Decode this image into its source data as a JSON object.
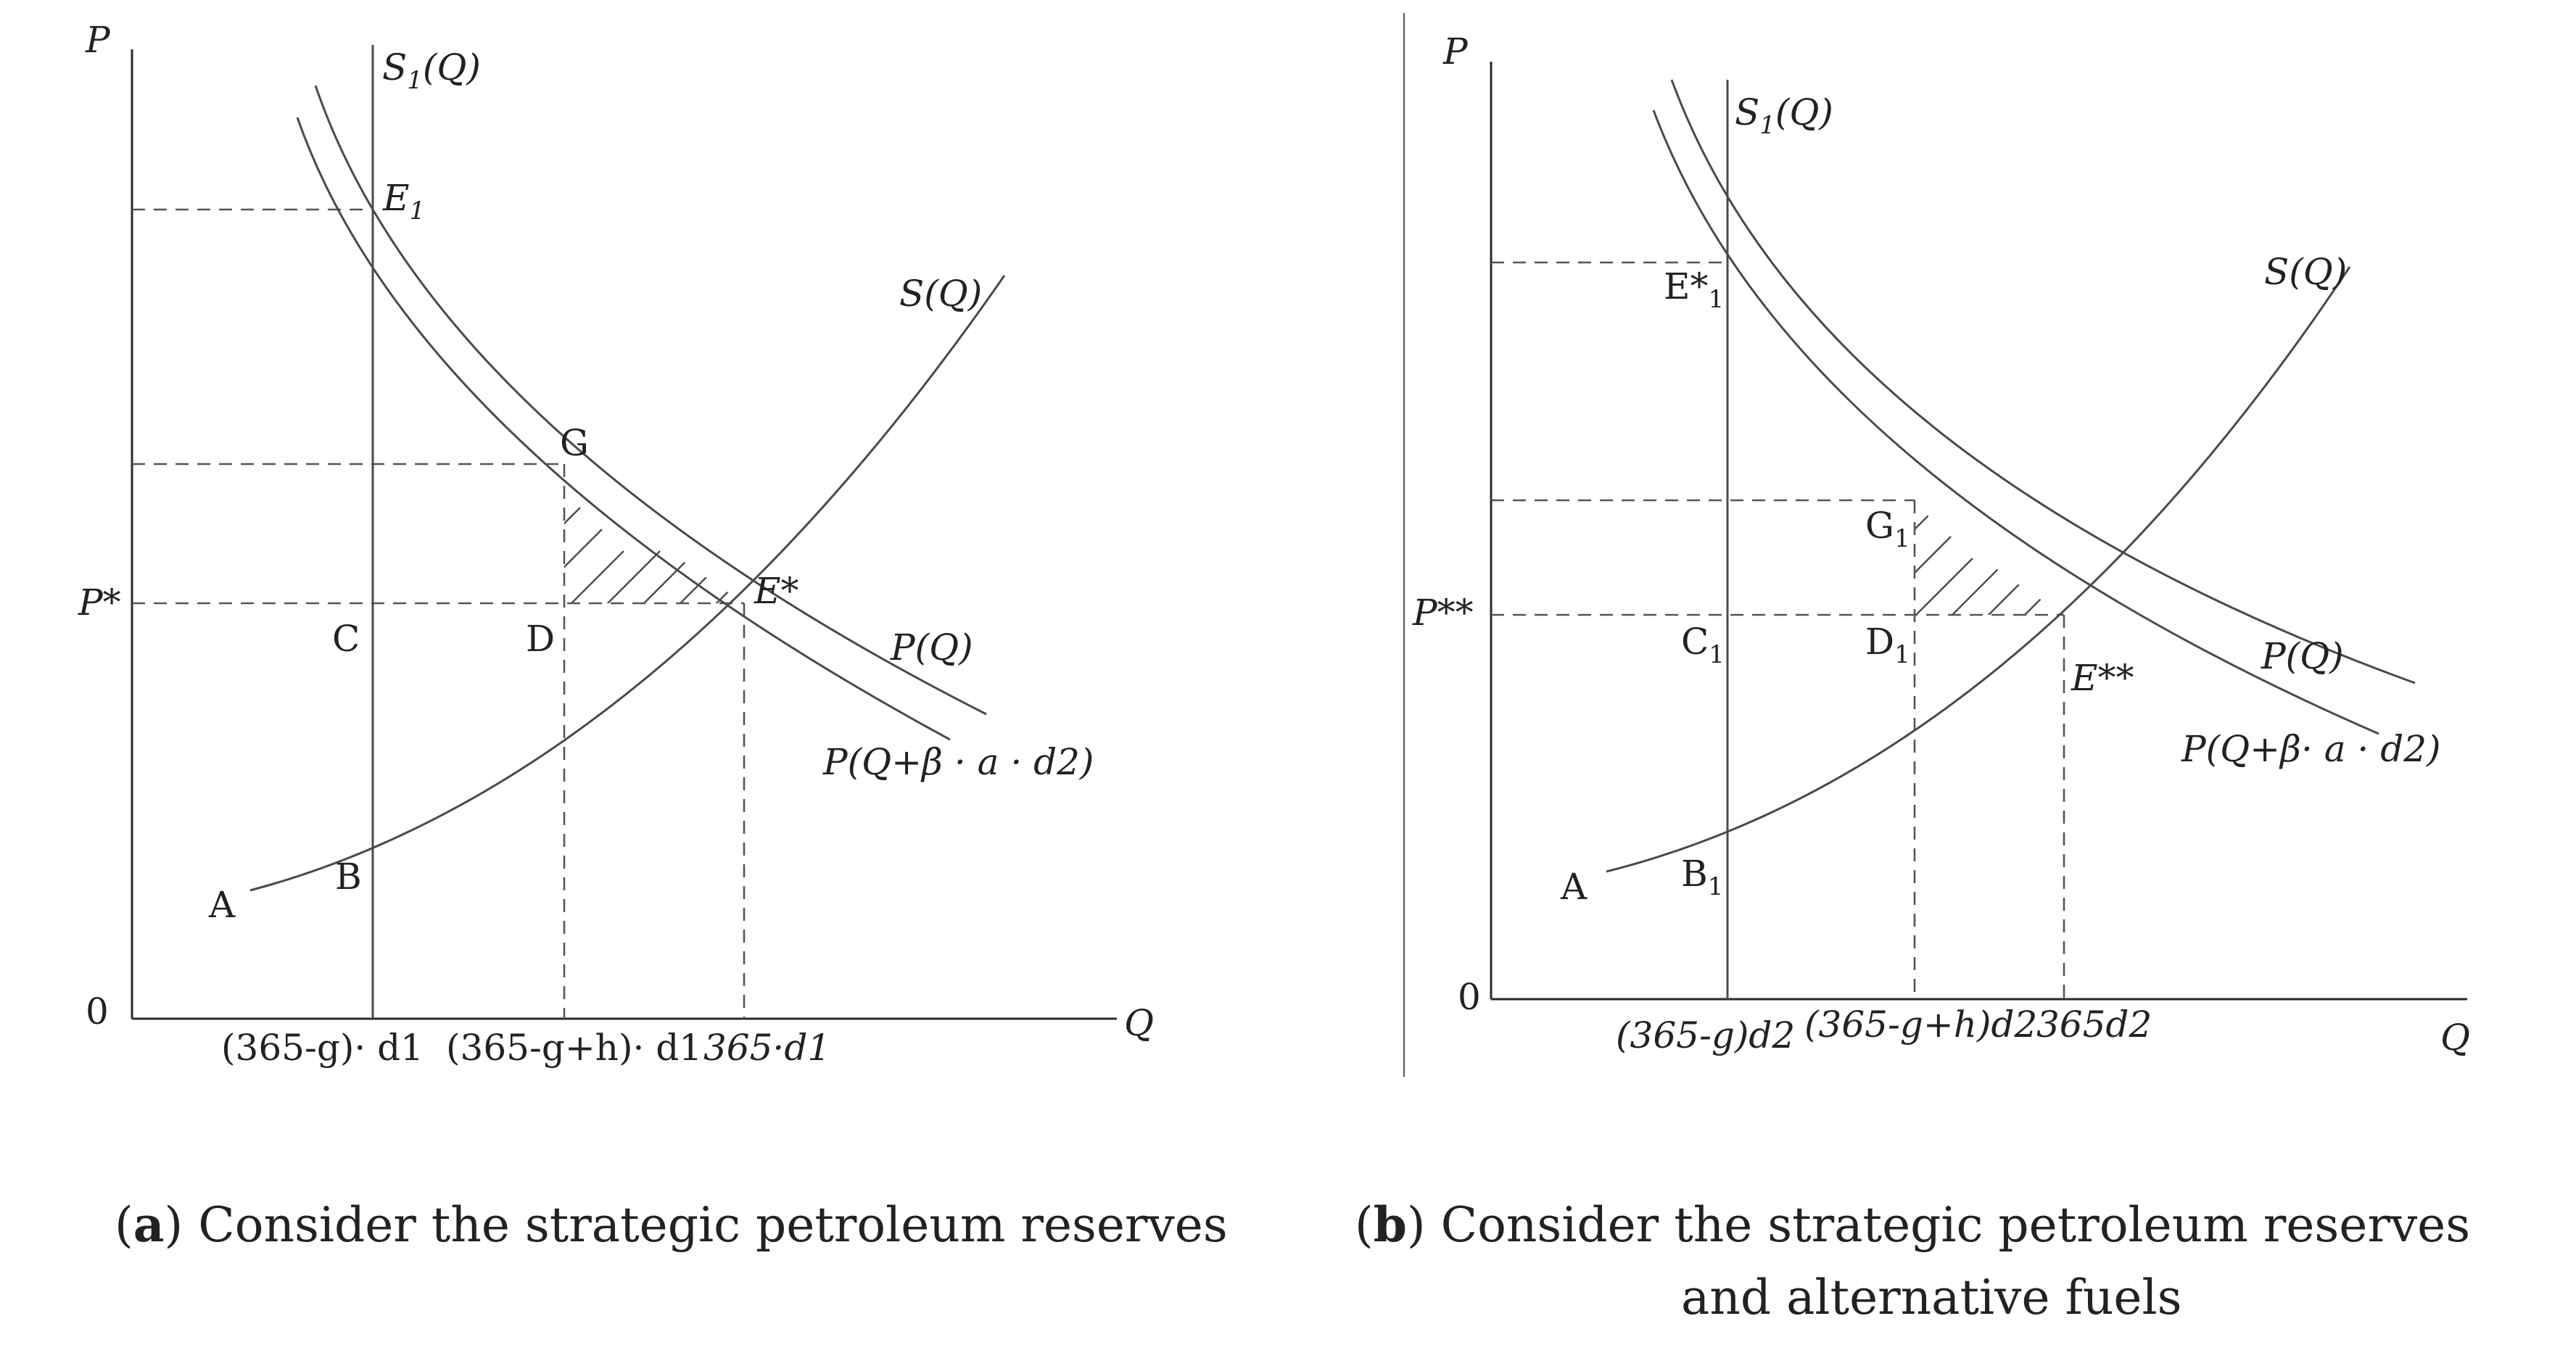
{
  "panel_a": {
    "axis_p": "P",
    "axis_q": "Q",
    "origin": "0",
    "p_star": "P*",
    "s1_s": "S",
    "s1_sub": "1",
    "s1_q": "(Q)",
    "s_curve": "S(Q)",
    "p_curve": "P(Q)",
    "p_shift_curve": "P(Q+β · a · d2)",
    "e1_main": "E",
    "e1_sub": "1",
    "g": "G",
    "e_star": "E*",
    "c": "C",
    "d": "D",
    "b": "B",
    "a": "A",
    "x1": "(365-g)· d1",
    "x2": "(365-g+h)· d1",
    "x3": "365·d1",
    "caption_letter": "a",
    "caption_text": " Consider the strategic petroleum reserves"
  },
  "panel_b": {
    "axis_p": "P",
    "axis_q": "Q",
    "origin": "0",
    "p_star": "P**",
    "s1_s": "S",
    "s1_sub": "1",
    "s1_q": "(Q)",
    "s_curve": "S(Q)",
    "p_curve": "P(Q)",
    "p_shift_curve": "P(Q+β· a · d2)",
    "e1_main": "E*",
    "e1_sub": "1",
    "g_main": "G",
    "g_sub": "1",
    "e_star": "E**",
    "c_main": "C",
    "c_sub": "1",
    "d_main": "D",
    "d_sub": "1",
    "b_main": "B",
    "b_sub": "1",
    "a": "A",
    "x1": "(365-g)d2",
    "x2": "(365-g+h)d2",
    "x3": "365d2",
    "caption_letter": "b",
    "caption_text_1": " Consider the strategic petroleum reserves",
    "caption_text_2": "and alternative fuels"
  }
}
